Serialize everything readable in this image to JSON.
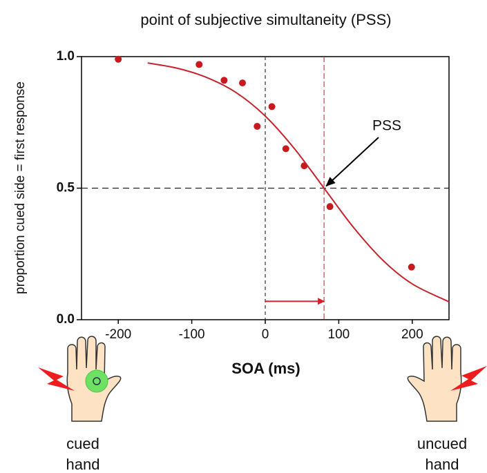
{
  "chart_data": {
    "type": "scatter",
    "title": "point of subjective simultaneity (PSS)",
    "x_label": "SOA (ms)",
    "y_label": "proportion cued side = first response",
    "xlim": [
      -250,
      250
    ],
    "ylim": [
      0,
      1
    ],
    "xticks": [
      -200,
      -100,
      0,
      100,
      200
    ],
    "yticks": [
      {
        "value": 0,
        "label": "0.0"
      },
      {
        "value": 0.5,
        "label": "0.5"
      },
      {
        "value": 1,
        "label": "1.0"
      }
    ],
    "series": [
      {
        "type": "scatter",
        "color": "#c8191e",
        "x": [
          -200,
          -90,
          -56,
          -31,
          -11,
          9,
          28,
          53,
          88,
          199
        ],
        "values": [
          0.99,
          0.97,
          0.91,
          0.9,
          0.735,
          0.81,
          0.65,
          0.585,
          0.43,
          0.2
        ]
      },
      {
        "type": "line",
        "color": "#c8232c",
        "x": [
          -160,
          -120,
          -80,
          -40,
          0,
          40,
          80,
          120,
          160,
          200,
          250
        ],
        "values": [
          0.976,
          0.956,
          0.921,
          0.864,
          0.774,
          0.649,
          0.5,
          0.351,
          0.226,
          0.136,
          0.068
        ]
      }
    ],
    "reference_lines": {
      "y": 0.5,
      "x": 0,
      "pss": 80
    },
    "shift_arrow": {
      "from": 0,
      "to": 80,
      "y": 0.07
    },
    "annotation": {
      "text": "PSS",
      "x": 80,
      "y": 0.5
    },
    "hand_labels": [
      "cued hand",
      "uncued hand"
    ]
  }
}
